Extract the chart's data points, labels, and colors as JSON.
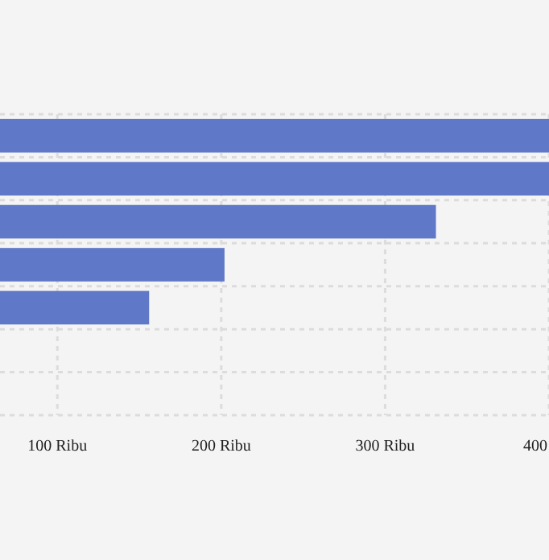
{
  "chart_data": {
    "type": "bar",
    "orientation": "horizontal",
    "categories": [
      null,
      null,
      null,
      null,
      null,
      null,
      null
    ],
    "values": [
      400,
      400,
      331,
      202,
      156,
      null,
      null
    ],
    "color": "#5f78c7",
    "xlim": [
      65,
      400
    ],
    "xticks": [
      {
        "value": 100,
        "label": "100 Ribu"
      },
      {
        "value": 200,
        "label": "200 Ribu"
      },
      {
        "value": 300,
        "label": "300 Ribu"
      },
      {
        "value": 400,
        "label": "400"
      }
    ],
    "grid": true
  }
}
